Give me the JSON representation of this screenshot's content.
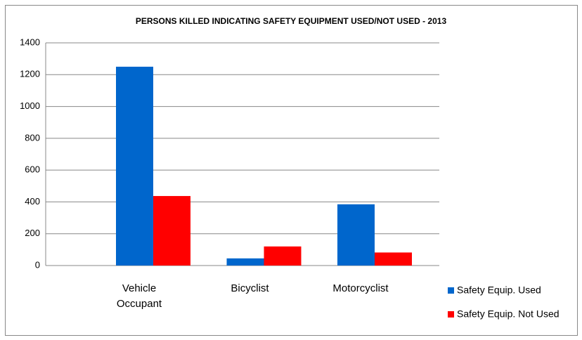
{
  "chart_data": {
    "type": "bar",
    "title": "PERSONS KILLED INDICATING SAFETY EQUIPMENT USED/NOT USED - 2013",
    "categories": [
      "Vehicle Occupant",
      "Bicyclist",
      "Motorcyclist"
    ],
    "series": [
      {
        "name": "Safety Equip. Used",
        "color": "#0066cc",
        "values": [
          1250,
          45,
          385
        ]
      },
      {
        "name": "Safety Equip. Not Used",
        "color": "#ff0000",
        "values": [
          437,
          120,
          82
        ]
      }
    ],
    "ylim": [
      0,
      1400
    ],
    "yticks": [
      0,
      200,
      400,
      600,
      800,
      1000,
      1200,
      1400
    ],
    "grid": true,
    "legend": "right"
  }
}
